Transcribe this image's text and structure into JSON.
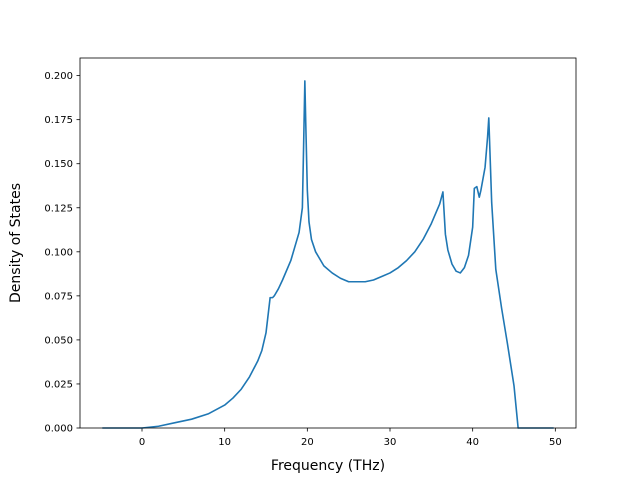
{
  "chart_data": {
    "type": "line",
    "title": "",
    "xlabel": "Frequency (THz)",
    "ylabel": "Density of States",
    "xlim": [
      -7.5,
      52.5
    ],
    "ylim": [
      0.0,
      0.21
    ],
    "xticks": [
      0,
      10,
      20,
      30,
      40,
      50
    ],
    "xtick_labels": [
      "0",
      "10",
      "20",
      "30",
      "40",
      "50"
    ],
    "yticks": [
      0.0,
      0.025,
      0.05,
      0.075,
      0.1,
      0.125,
      0.15,
      0.175,
      0.2
    ],
    "ytick_labels": [
      "0.000",
      "0.025",
      "0.050",
      "0.075",
      "0.100",
      "0.125",
      "0.150",
      "0.175",
      "0.200"
    ],
    "grid": false,
    "legend": false,
    "series": [
      {
        "color": "#1f77b4",
        "x": [
          -4.8,
          0,
          2,
          4,
          6,
          8,
          10,
          11,
          12,
          13,
          14,
          14.5,
          15,
          15.5,
          15.8,
          16,
          16.5,
          17,
          18,
          19,
          19.4,
          19.55,
          19.7,
          19.8,
          20,
          20.2,
          20.5,
          21,
          22,
          23,
          24,
          25,
          26,
          27,
          28,
          29,
          30,
          31,
          32,
          33,
          34,
          35,
          36,
          36.4,
          36.7,
          37,
          37.5,
          38,
          38.5,
          39,
          39.5,
          40,
          40.2,
          40.5,
          40.8,
          41,
          41.5,
          41.8,
          41.95,
          42.3,
          42.8,
          43.5,
          44.2,
          45,
          45.5,
          46,
          47,
          49.8
        ],
        "y": [
          0.0,
          0.0,
          0.001,
          0.003,
          0.005,
          0.008,
          0.013,
          0.017,
          0.022,
          0.029,
          0.038,
          0.044,
          0.054,
          0.074,
          0.074,
          0.075,
          0.079,
          0.084,
          0.095,
          0.111,
          0.125,
          0.16,
          0.197,
          0.175,
          0.135,
          0.117,
          0.107,
          0.1,
          0.092,
          0.088,
          0.085,
          0.083,
          0.083,
          0.083,
          0.084,
          0.086,
          0.088,
          0.091,
          0.095,
          0.1,
          0.107,
          0.116,
          0.127,
          0.134,
          0.11,
          0.101,
          0.093,
          0.089,
          0.088,
          0.091,
          0.098,
          0.114,
          0.136,
          0.137,
          0.131,
          0.135,
          0.148,
          0.165,
          0.176,
          0.128,
          0.09,
          0.068,
          0.048,
          0.024,
          0.0,
          0.0,
          0.0,
          0.0
        ]
      }
    ]
  }
}
